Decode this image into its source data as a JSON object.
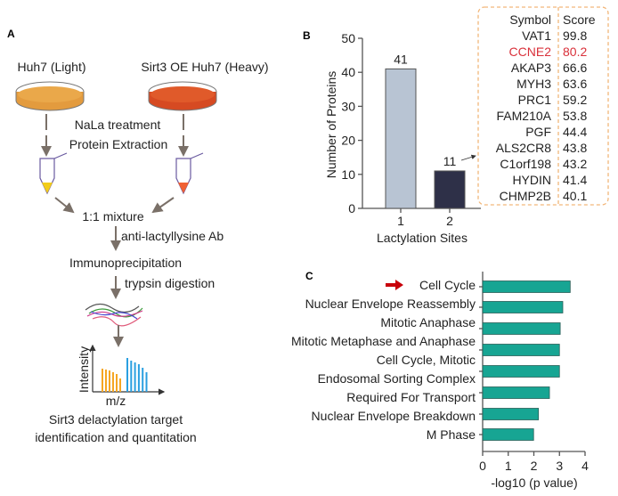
{
  "panels": {
    "a": "A",
    "b": "B",
    "c": "C"
  },
  "workflow": {
    "light_label": "Huh7 (Light)",
    "heavy_label": "Sirt3 OE Huh7 (Heavy)",
    "step1": "NaLa treatment",
    "step2": "Protein Extraction",
    "mixture": "1:1 mixture",
    "antibody": "anti-lactyllysine Ab",
    "ip": "Immunoprecipitation",
    "digestion": "trypsin digestion",
    "ms_ylabel": "Intensity",
    "ms_xlabel": "m/z",
    "result_line1": "Sirt3 delactylation target",
    "result_line2": "identification and quantitation",
    "colors": {
      "light": "#e8a040",
      "heavy": "#e0502a",
      "orange_bars": "#f5a623",
      "blue_bars": "#2a9fe0"
    }
  },
  "table": {
    "headers": [
      "Symbol",
      "Score"
    ],
    "rows": [
      {
        "symbol": "VAT1",
        "score": "99.8"
      },
      {
        "symbol": "CCNE2",
        "score": "80.2",
        "highlight": true
      },
      {
        "symbol": "AKAP3",
        "score": "66.6"
      },
      {
        "symbol": "MYH3",
        "score": "63.6"
      },
      {
        "symbol": "PRC1",
        "score": "59.2"
      },
      {
        "symbol": "FAM210A",
        "score": "53.8"
      },
      {
        "symbol": "PGF",
        "score": "44.4"
      },
      {
        "symbol": "ALS2CR8",
        "score": "43.8"
      },
      {
        "symbol": "C1orf198",
        "score": "43.2"
      },
      {
        "symbol": "HYDIN",
        "score": "41.4"
      },
      {
        "symbol": "CHMP2B",
        "score": "40.1"
      }
    ],
    "highlight_color": "#d9303a",
    "border_color": "#f2b77a"
  },
  "chart_data": [
    {
      "type": "bar",
      "categories": [
        "1",
        "2"
      ],
      "values": [
        41,
        11
      ],
      "data_labels": [
        "41",
        "11"
      ],
      "colors": [
        "#b8c4d3",
        "#2e3048"
      ],
      "xlabel": "Lactylation Sites",
      "ylabel": "Number of Proteins",
      "ylim": [
        0,
        50
      ],
      "yticks": [
        "0",
        "10",
        "20",
        "30",
        "40",
        "50"
      ],
      "grid": false
    },
    {
      "type": "bar",
      "orientation": "horizontal",
      "categories": [
        {
          "lines": [
            "Cell Cycle"
          ],
          "marked": true
        },
        {
          "lines": [
            "Nuclear Envelope Reassembly"
          ]
        },
        {
          "lines": [
            "Mitotic Anaphase"
          ]
        },
        {
          "lines": [
            "Mitotic Metaphase and Anaphase"
          ]
        },
        {
          "lines": [
            "Cell Cycle, Mitotic"
          ]
        },
        {
          "lines": [
            "Endosomal Sorting Complex",
            "Required For Transport"
          ]
        },
        {
          "lines": [
            "Nuclear Envelope Breakdown"
          ]
        },
        {
          "lines": [
            "M Phase"
          ]
        }
      ],
      "values": [
        3.42,
        3.13,
        3.03,
        3.0,
        3.0,
        2.61,
        2.18,
        1.99
      ],
      "color": "#17a593",
      "marker_color": "#c8000a",
      "xlabel": "-log10 (p value)",
      "xlim": [
        0,
        4
      ],
      "xticks": [
        "0",
        "1",
        "2",
        "3",
        "4"
      ],
      "grid": false
    }
  ]
}
